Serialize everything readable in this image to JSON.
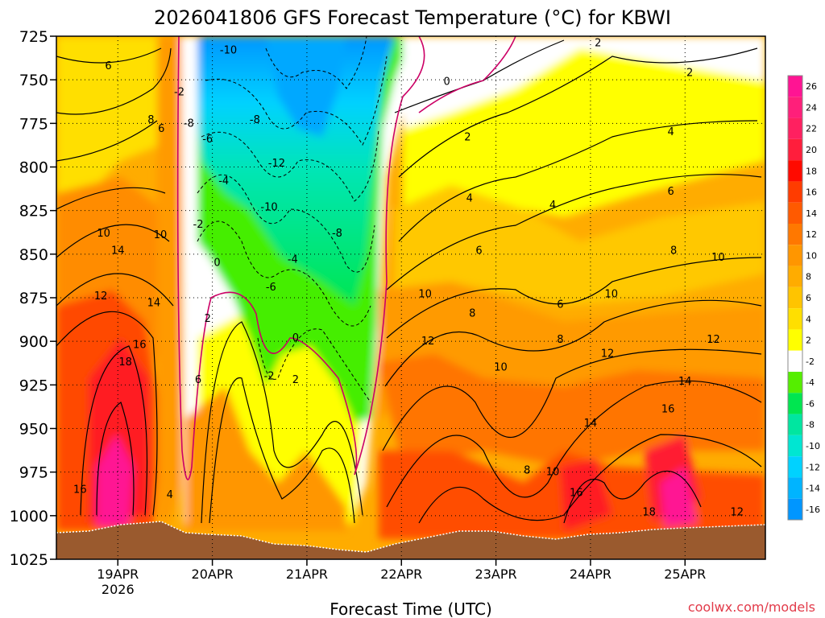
{
  "chart_data": {
    "type": "heatmap",
    "title": "2026041806 GFS Forecast Temperature (°C) for KBWI",
    "xlabel": "Forecast Time (UTC)",
    "ylabel": "",
    "y_pressure_ticks": [
      725,
      750,
      775,
      800,
      825,
      850,
      875,
      900,
      925,
      950,
      975,
      1000,
      1025
    ],
    "ylim": [
      725,
      1025
    ],
    "x_ticks": [
      {
        "label": "19APR",
        "sub": "2026",
        "day": 19
      },
      {
        "label": "20APR",
        "sub": "",
        "day": 20
      },
      {
        "label": "21APR",
        "sub": "",
        "day": 21
      },
      {
        "label": "22APR",
        "sub": "",
        "day": 22
      },
      {
        "label": "23APR",
        "sub": "",
        "day": 23
      },
      {
        "label": "24APR",
        "sub": "",
        "day": 24
      },
      {
        "label": "25APR",
        "sub": "",
        "day": 25
      }
    ],
    "xlim_days": [
      18.35,
      25.85
    ],
    "grid": true,
    "legend": "right",
    "colorbar": {
      "labels": [
        "26",
        "24",
        "22",
        "20",
        "18",
        "16",
        "14",
        "12",
        "10",
        "8",
        "6",
        "4",
        "2",
        "-2",
        "-4",
        "-6",
        "-8",
        "-10",
        "-12",
        "-14",
        "-16"
      ],
      "colors": [
        "#ff1493",
        "#ff1f7a",
        "#ff2060",
        "#ff1e3c",
        "#ff0a00",
        "#ff3c00",
        "#ff5a00",
        "#ff7800",
        "#ff9600",
        "#ffac00",
        "#ffc400",
        "#ffdf00",
        "#ffff00",
        "#ffffff",
        "#55ee00",
        "#00e650",
        "#00e6a0",
        "#00e6d2",
        "#00d2ff",
        "#00b4ff",
        "#0096ff"
      ]
    },
    "contour_labels": [
      {
        "text": "6",
        "day": 18.9,
        "p": 742
      },
      {
        "text": "8",
        "day": 19.35,
        "p": 773
      },
      {
        "text": "6",
        "day": 19.46,
        "p": 778
      },
      {
        "text": "10",
        "day": 18.85,
        "p": 838
      },
      {
        "text": "14",
        "day": 19.0,
        "p": 848
      },
      {
        "text": "10",
        "day": 19.45,
        "p": 839
      },
      {
        "text": "12",
        "day": 18.82,
        "p": 874
      },
      {
        "text": "14",
        "day": 19.38,
        "p": 878
      },
      {
        "text": "16",
        "day": 19.23,
        "p": 902
      },
      {
        "text": "18",
        "day": 19.08,
        "p": 912
      },
      {
        "text": "16",
        "day": 18.6,
        "p": 985
      },
      {
        "text": "-2",
        "day": 19.65,
        "p": 757
      },
      {
        "text": "-8",
        "day": 19.75,
        "p": 775
      },
      {
        "text": "-6",
        "day": 19.95,
        "p": 784
      },
      {
        "text": "-10",
        "day": 20.17,
        "p": 733
      },
      {
        "text": "-8",
        "day": 20.45,
        "p": 773
      },
      {
        "text": "-4",
        "day": 20.12,
        "p": 808
      },
      {
        "text": "-12",
        "day": 20.68,
        "p": 798
      },
      {
        "text": "-10",
        "day": 20.6,
        "p": 823
      },
      {
        "text": "-2",
        "day": 19.85,
        "p": 833
      },
      {
        "text": "-8",
        "day": 21.32,
        "p": 838
      },
      {
        "text": "-4",
        "day": 20.85,
        "p": 853
      },
      {
        "text": "-6",
        "day": 20.62,
        "p": 869
      },
      {
        "text": "0",
        "day": 20.05,
        "p": 855
      },
      {
        "text": "0",
        "day": 20.88,
        "p": 898
      },
      {
        "text": "-2",
        "day": 20.6,
        "p": 920
      },
      {
        "text": "2",
        "day": 19.95,
        "p": 887
      },
      {
        "text": "2",
        "day": 20.88,
        "p": 922
      },
      {
        "text": "6",
        "day": 19.85,
        "p": 922
      },
      {
        "text": "4",
        "day": 19.55,
        "p": 988
      },
      {
        "text": "0",
        "day": 22.48,
        "p": 751
      },
      {
        "text": "2",
        "day": 22.7,
        "p": 783
      },
      {
        "text": "2",
        "day": 24.08,
        "p": 729
      },
      {
        "text": "2",
        "day": 25.05,
        "p": 746
      },
      {
        "text": "4",
        "day": 24.85,
        "p": 780
      },
      {
        "text": "4",
        "day": 22.72,
        "p": 818
      },
      {
        "text": "4",
        "day": 23.6,
        "p": 822
      },
      {
        "text": "6",
        "day": 24.85,
        "p": 814
      },
      {
        "text": "6",
        "day": 22.82,
        "p": 848
      },
      {
        "text": "8",
        "day": 24.88,
        "p": 848
      },
      {
        "text": "10",
        "day": 25.35,
        "p": 852
      },
      {
        "text": "10",
        "day": 22.25,
        "p": 873
      },
      {
        "text": "6",
        "day": 23.68,
        "p": 879
      },
      {
        "text": "10",
        "day": 24.22,
        "p": 873
      },
      {
        "text": "8",
        "day": 22.75,
        "p": 884
      },
      {
        "text": "8",
        "day": 23.68,
        "p": 899
      },
      {
        "text": "12",
        "day": 22.28,
        "p": 900
      },
      {
        "text": "12",
        "day": 24.18,
        "p": 907
      },
      {
        "text": "12",
        "day": 25.3,
        "p": 899
      },
      {
        "text": "10",
        "day": 23.05,
        "p": 915
      },
      {
        "text": "14",
        "day": 25.0,
        "p": 923
      },
      {
        "text": "14",
        "day": 24.0,
        "p": 947
      },
      {
        "text": "16",
        "day": 24.82,
        "p": 939
      },
      {
        "text": "8",
        "day": 23.33,
        "p": 974
      },
      {
        "text": "10",
        "day": 23.6,
        "p": 975
      },
      {
        "text": "16",
        "day": 23.85,
        "p": 987
      },
      {
        "text": "18",
        "day": 24.62,
        "p": 998
      },
      {
        "text": "12",
        "day": 25.55,
        "p": 998
      }
    ]
  },
  "watermark": "coolwx.com/models"
}
